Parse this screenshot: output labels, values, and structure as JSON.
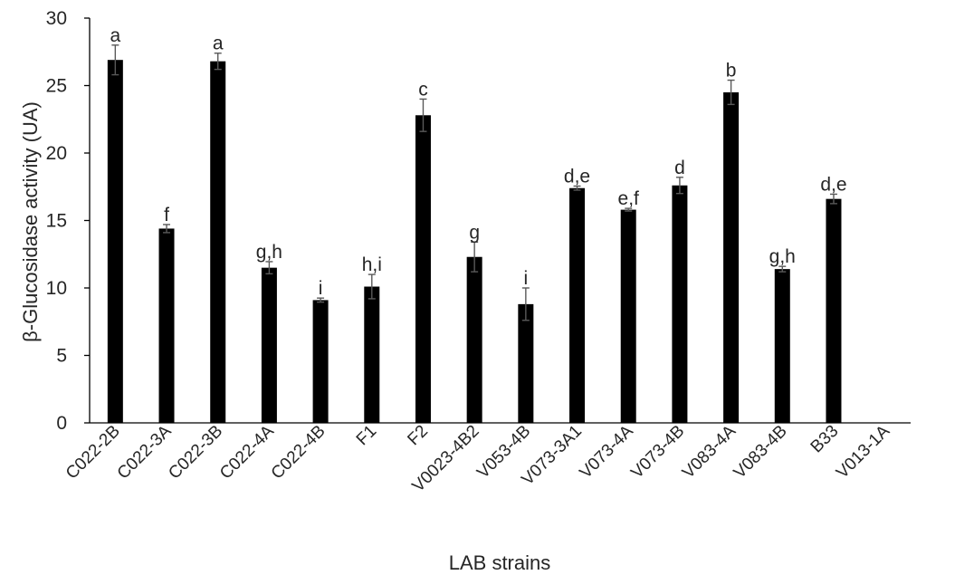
{
  "chart_data": {
    "type": "bar",
    "title": "",
    "xlabel": "LAB strains",
    "ylabel": "β-Glucosidase activity (UA)",
    "ylim": [
      0,
      30
    ],
    "yticks": [
      0,
      5,
      10,
      15,
      20,
      25,
      30
    ],
    "grid": false,
    "legend": "none",
    "bar_color": "#000000",
    "error_bar_color": "#595959",
    "categories": [
      "C022-2B",
      "C022-3A",
      "C022-3B",
      "C022-4A",
      "C022-4B",
      "F1",
      "F2",
      "V0023-4B2",
      "V053-4B",
      "V073-3A1",
      "V073-4A",
      "V073-4B",
      "V083-4A",
      "V083-4B",
      "B33",
      "V013-1A"
    ],
    "values": [
      26.9,
      14.4,
      26.8,
      11.5,
      9.1,
      10.1,
      22.8,
      12.3,
      8.8,
      17.4,
      15.8,
      17.6,
      24.5,
      11.4,
      16.6,
      0
    ],
    "errors": [
      1.1,
      0.3,
      0.6,
      0.45,
      0.15,
      0.9,
      1.2,
      1.1,
      1.2,
      0.15,
      0.1,
      0.6,
      0.9,
      0.2,
      0.35,
      0
    ],
    "labels": [
      "a",
      "f",
      "a",
      "g,h",
      "i",
      "h,i",
      "c",
      "g",
      "i",
      "d,e",
      "e,f",
      "d",
      "b",
      "g,h",
      "d,e",
      ""
    ]
  }
}
